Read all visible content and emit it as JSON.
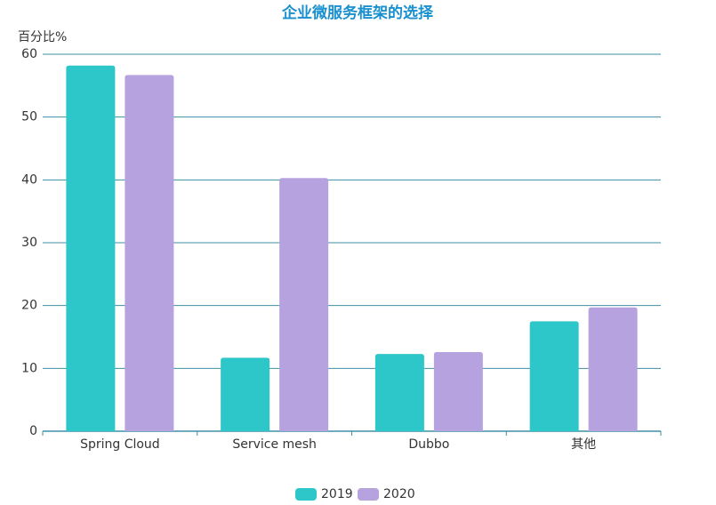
{
  "chart_data": {
    "type": "bar",
    "title": "企业微服务框架的选择",
    "y_label": "百分比%",
    "categories": [
      "Spring Cloud",
      "Service mesh",
      "Dubbo",
      "其他"
    ],
    "series": [
      {
        "name": "2019",
        "color": "#2ec7c9",
        "values": [
          58.2,
          11.7,
          12.3,
          17.5
        ]
      },
      {
        "name": "2020",
        "color": "#b6a2de",
        "values": [
          56.7,
          40.3,
          12.6,
          19.7
        ]
      }
    ],
    "ylim": [
      0,
      60
    ],
    "yticks": [
      0,
      10,
      20,
      30,
      40,
      50,
      60
    ],
    "grid": true,
    "legend": "bottom"
  }
}
